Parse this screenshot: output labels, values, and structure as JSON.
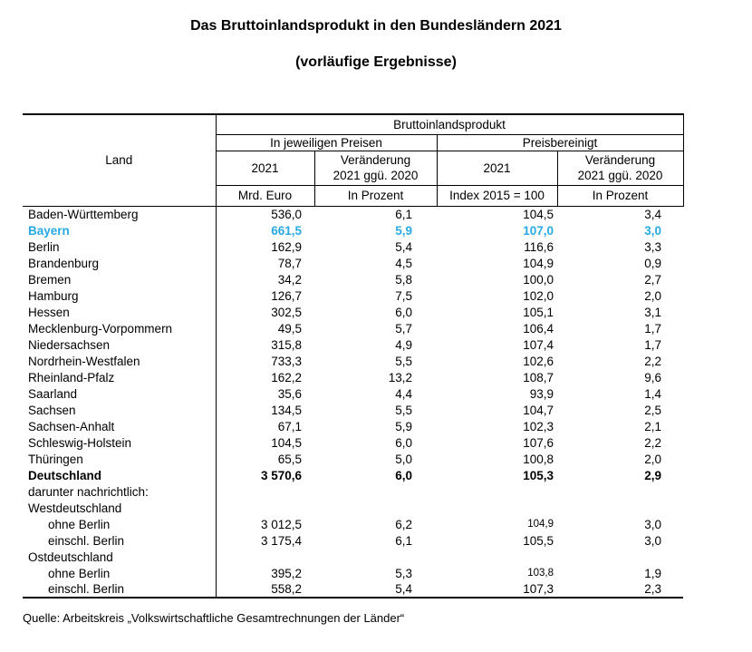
{
  "title": {
    "line1": "Das Bruttoinlandsprodukt in den Bundesländern 2021",
    "line2": "(vorläufige Ergebnisse)"
  },
  "colors": {
    "highlight_text": "#29A9E3",
    "border": "#000000",
    "text": "#000000",
    "background": "#FFFFFF"
  },
  "table": {
    "header": {
      "land": "Land",
      "bip": "Bruttoinlandsprodukt",
      "group_current": "In jeweiligen Preisen",
      "group_adjusted": "Preisbereinigt",
      "year": "2021",
      "change_line1": "Veränderung",
      "change_line2": "2021 ggü. 2020",
      "unit_mrd": "Mrd. Euro",
      "unit_pct": "In Prozent",
      "unit_index": "Index 2015 = 100"
    },
    "rows": [
      {
        "land": "Baden-Württemberg",
        "values": [
          "536,0",
          "6,1",
          "104,5",
          "3,4"
        ]
      },
      {
        "land": "Bayern",
        "values": [
          "661,5",
          "5,9",
          "107,0",
          "3,0"
        ],
        "style": "highlight"
      },
      {
        "land": "Berlin",
        "values": [
          "162,9",
          "5,4",
          "116,6",
          "3,3"
        ]
      },
      {
        "land": "Brandenburg",
        "values": [
          "78,7",
          "4,5",
          "104,9",
          "0,9"
        ]
      },
      {
        "land": "Bremen",
        "values": [
          "34,2",
          "5,8",
          "100,0",
          "2,7"
        ]
      },
      {
        "land": "Hamburg",
        "values": [
          "126,7",
          "7,5",
          "102,0",
          "2,0"
        ]
      },
      {
        "land": "Hessen",
        "values": [
          "302,5",
          "6,0",
          "105,1",
          "3,1"
        ]
      },
      {
        "land": "Mecklenburg-Vorpommern",
        "values": [
          "49,5",
          "5,7",
          "106,4",
          "1,7"
        ]
      },
      {
        "land": "Niedersachsen",
        "values": [
          "315,8",
          "4,9",
          "107,4",
          "1,7"
        ]
      },
      {
        "land": "Nordrhein-Westfalen",
        "values": [
          "733,3",
          "5,5",
          "102,6",
          "2,2"
        ]
      },
      {
        "land": "Rheinland-Pfalz",
        "values": [
          "162,2",
          "13,2",
          "108,7",
          "9,6"
        ]
      },
      {
        "land": "Saarland",
        "values": [
          "35,6",
          "4,4",
          "93,9",
          "1,4"
        ]
      },
      {
        "land": "Sachsen",
        "values": [
          "134,5",
          "5,5",
          "104,7",
          "2,5"
        ]
      },
      {
        "land": "Sachsen-Anhalt",
        "values": [
          "67,1",
          "5,9",
          "102,3",
          "2,1"
        ]
      },
      {
        "land": "Schleswig-Holstein",
        "values": [
          "104,5",
          "6,0",
          "107,6",
          "2,2"
        ]
      },
      {
        "land": "Thüringen",
        "values": [
          "65,5",
          "5,0",
          "100,8",
          "2,0"
        ]
      },
      {
        "land": "Deutschland",
        "values": [
          "3 570,6",
          "6,0",
          "105,3",
          "2,9"
        ],
        "style": "bold"
      },
      {
        "land": "darunter nachrichtlich:",
        "values": [
          "",
          "",
          "",
          ""
        ]
      },
      {
        "land": "Westdeutschland",
        "values": [
          "",
          "",
          "",
          ""
        ]
      },
      {
        "land": "ohne Berlin",
        "values": [
          "3 012,5",
          "6,2",
          "104,9",
          "3,0"
        ],
        "indent": true,
        "small_cols": [
          2
        ]
      },
      {
        "land": "einschl. Berlin",
        "values": [
          "3 175,4",
          "6,1",
          "105,5",
          "3,0"
        ],
        "indent": true
      },
      {
        "land": "Ostdeutschland",
        "values": [
          "",
          "",
          "",
          ""
        ]
      },
      {
        "land": "ohne Berlin",
        "values": [
          "395,2",
          "5,3",
          "103,8",
          "1,9"
        ],
        "indent": true,
        "small_cols": [
          2
        ]
      },
      {
        "land": "einschl. Berlin",
        "values": [
          "558,2",
          "5,4",
          "107,3",
          "2,3"
        ],
        "indent": true,
        "last": true
      }
    ]
  },
  "footer": {
    "source": "Quelle: Arbeitskreis „Volkswirtschaftliche Gesamtrechnungen der Länder“"
  }
}
